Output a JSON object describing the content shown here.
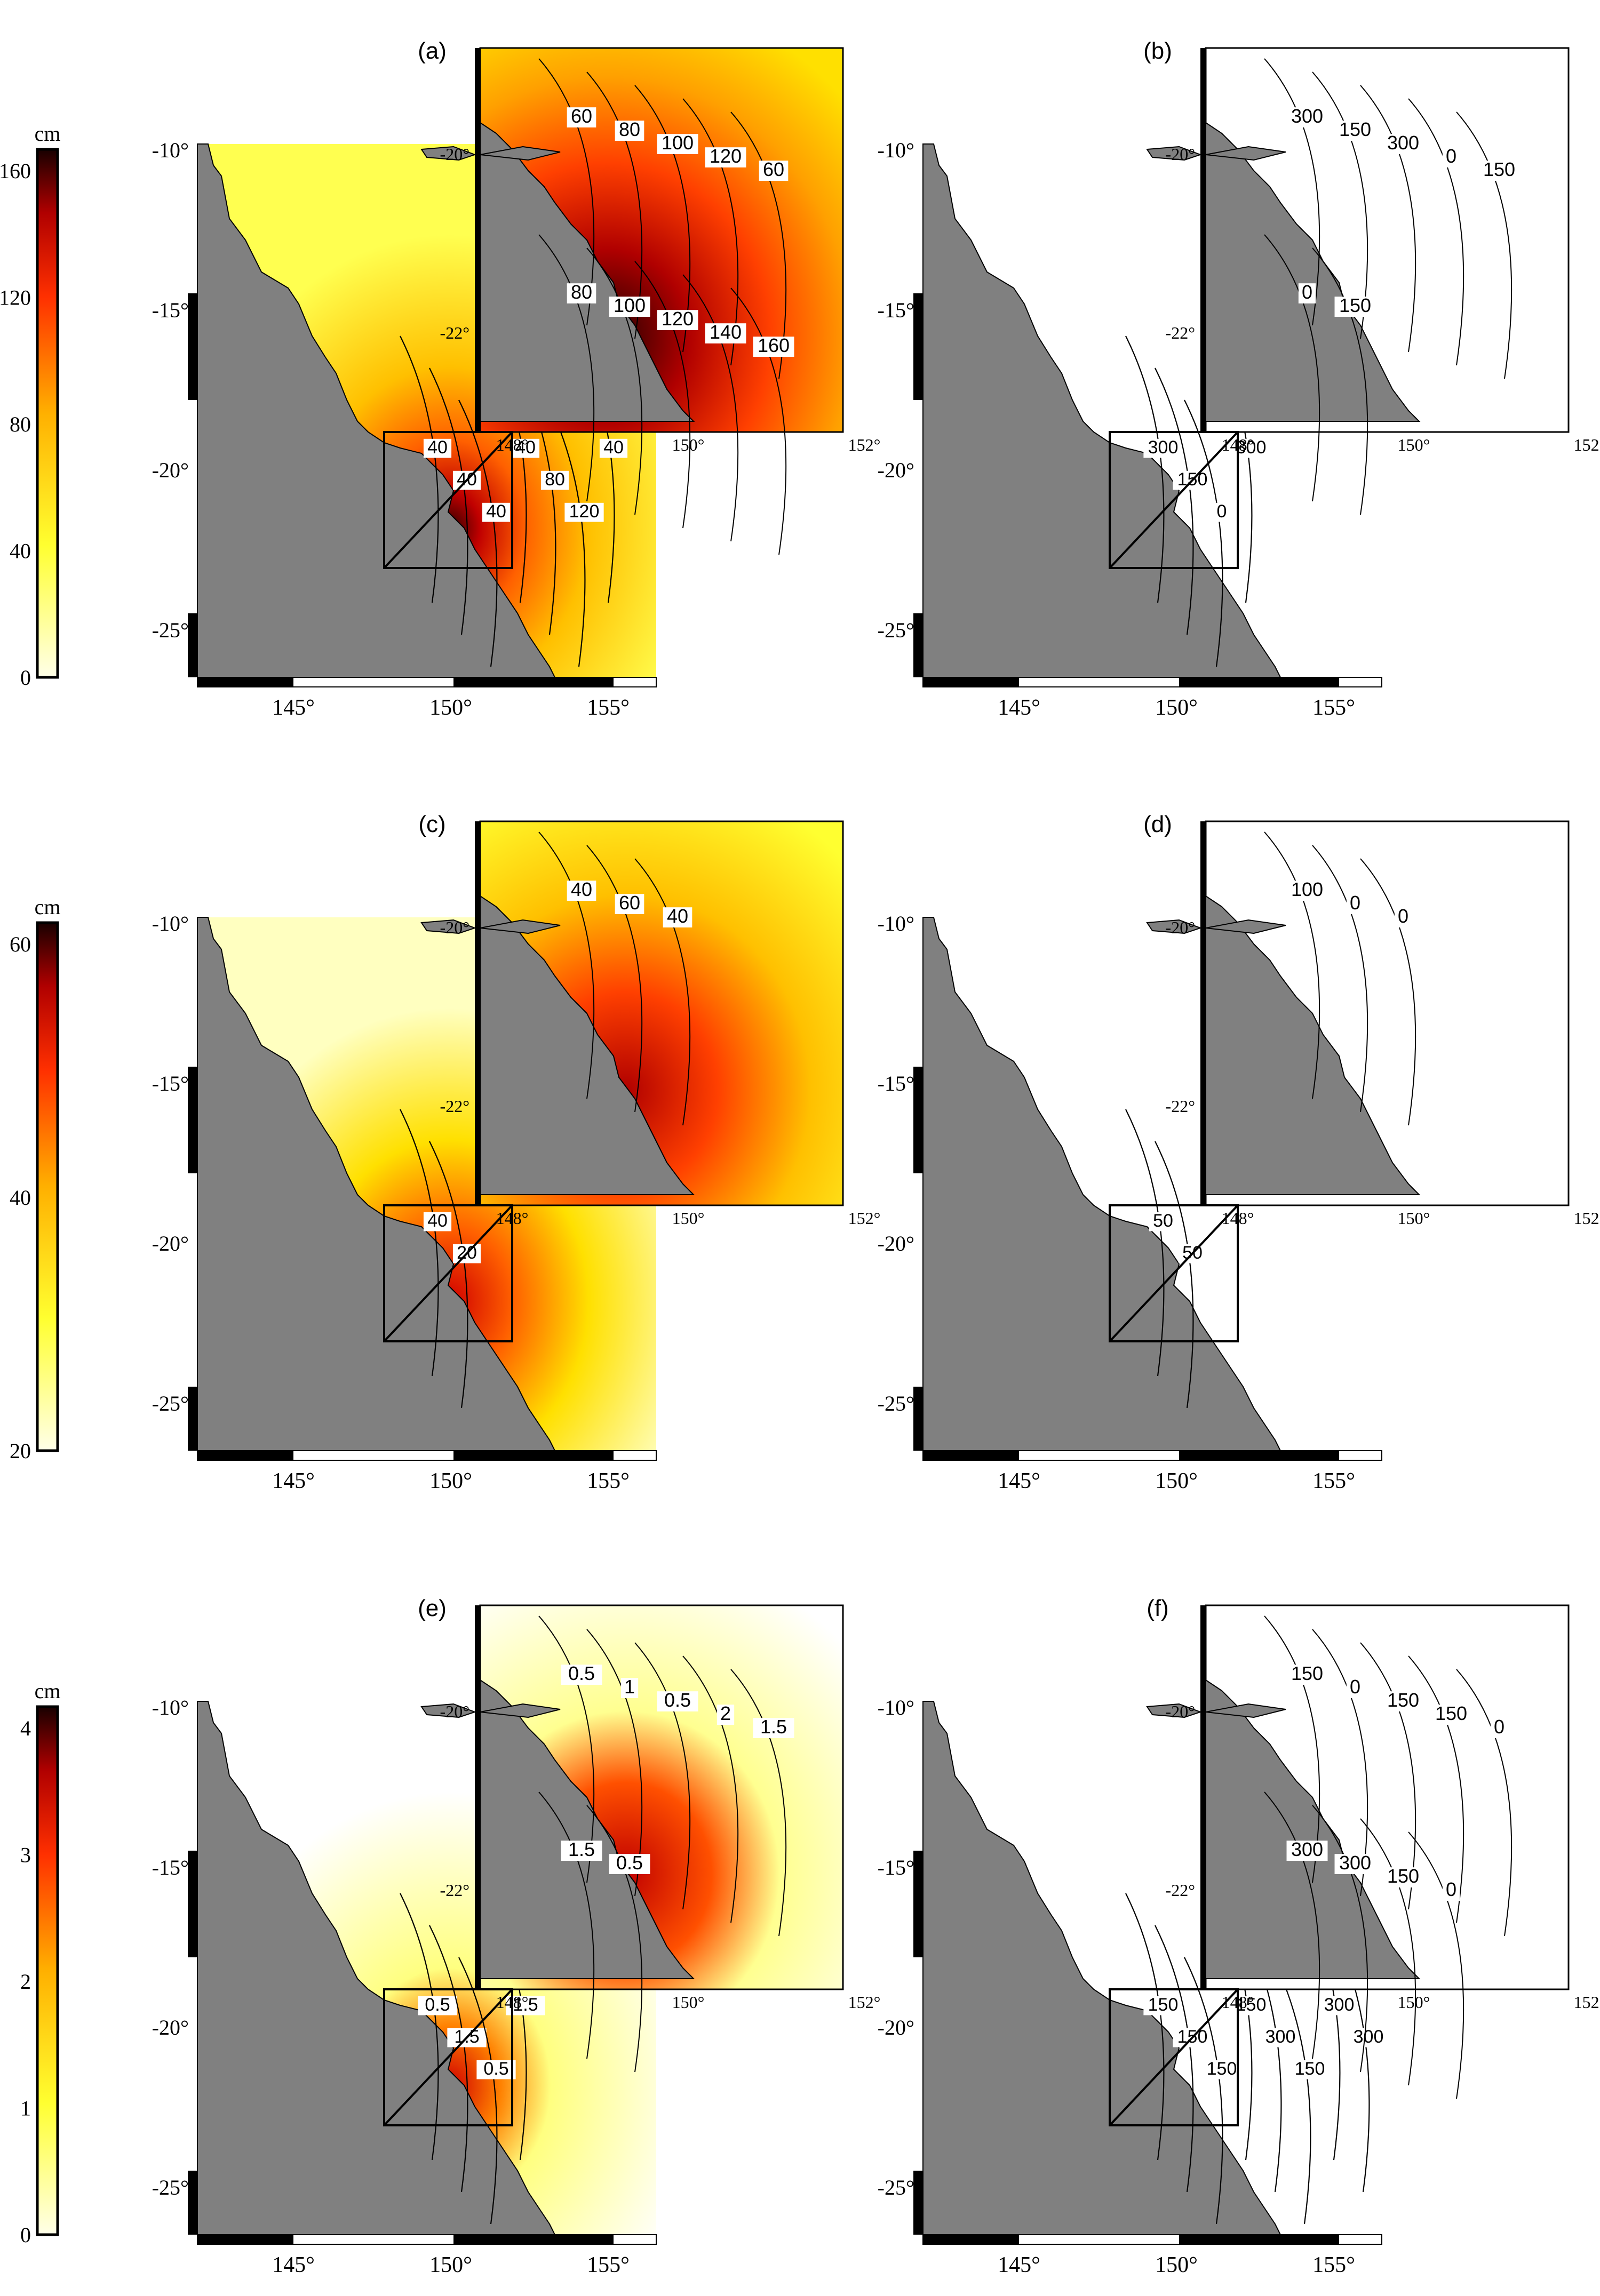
{
  "figure": {
    "panels": [
      {
        "label": "(a)",
        "kind": "amplitude",
        "inset_contours": [
          "60",
          "80",
          "100",
          "120",
          "60",
          "80",
          "100",
          "120",
          "140",
          "160"
        ],
        "main_contours": [
          "40",
          "40",
          "40",
          "40",
          "80",
          "120",
          "40"
        ]
      },
      {
        "label": "(b)",
        "kind": "phase",
        "inset_contours": [
          "300",
          "150",
          "300",
          "0",
          "150",
          "0",
          "150"
        ],
        "main_contours": [
          "300",
          "150",
          "0",
          "300"
        ]
      },
      {
        "label": "(c)",
        "kind": "amplitude",
        "inset_contours": [
          "40",
          "60",
          "40"
        ],
        "main_contours": [
          "40",
          "20"
        ]
      },
      {
        "label": "(d)",
        "kind": "phase",
        "inset_contours": [
          "100",
          "0",
          "0"
        ],
        "main_contours": [
          "50",
          "50"
        ]
      },
      {
        "label": "(e)",
        "kind": "amplitude",
        "inset_contours": [
          "0.5",
          "1",
          "0.5",
          "2",
          "1.5",
          "1.5",
          "0.5"
        ],
        "main_contours": [
          "0.5",
          "1.5",
          "0.5",
          "1.5"
        ]
      },
      {
        "label": "(f)",
        "kind": "phase",
        "inset_contours": [
          "150",
          "0",
          "150",
          "150",
          "0",
          "300",
          "300",
          "150",
          "0"
        ],
        "main_contours": [
          "150",
          "150",
          "150",
          "150",
          "300",
          "150",
          "300",
          "300"
        ]
      }
    ],
    "colorbars": [
      {
        "unit": "cm",
        "ticks": [
          "160",
          "120",
          "80",
          "40",
          "0"
        ]
      },
      {
        "unit": "cm",
        "ticks": [
          "60",
          "40",
          "20"
        ]
      },
      {
        "unit": "cm",
        "ticks": [
          "4",
          "3",
          "2",
          "1",
          "0"
        ]
      }
    ],
    "main_lat_ticks": [
      "-10°",
      "-15°",
      "-20°",
      "-25°"
    ],
    "main_lon_ticks": [
      "145°",
      "150°",
      "155°"
    ],
    "inset_lat_ticks": [
      "-20°",
      "-22°"
    ],
    "inset_lon_ticks": [
      "148°",
      "150°",
      "152°"
    ],
    "colors": {
      "land": "#808080",
      "water_low": "#ffffe0",
      "yellow": "#ffff00",
      "orange": "#ff8c00",
      "red": "#e00000",
      "dark": "#200000"
    }
  }
}
